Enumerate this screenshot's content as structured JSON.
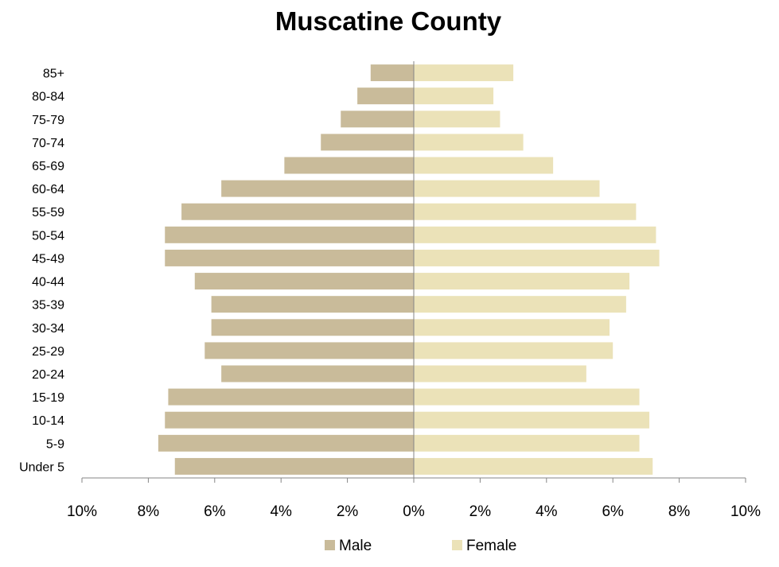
{
  "chart_data": {
    "type": "bar",
    "orientation": "horizontal",
    "title": "Muscatine County",
    "xlabel": "",
    "ylabel": "",
    "categories": [
      "Under 5",
      "5-9",
      "10-14",
      "15-19",
      "20-24",
      "25-29",
      "30-34",
      "35-39",
      "40-44",
      "45-49",
      "50-54",
      "55-59",
      "60-64",
      "65-69",
      "70-74",
      "75-79",
      "80-84",
      "85+"
    ],
    "series": [
      {
        "name": "Male",
        "color": "#c9bb9a",
        "values": [
          -7.2,
          -7.7,
          -7.5,
          -7.4,
          -5.8,
          -6.3,
          -6.1,
          -6.1,
          -6.6,
          -7.5,
          -7.5,
          -7.0,
          -5.8,
          -3.9,
          -2.8,
          -2.2,
          -1.7,
          -1.3
        ]
      },
      {
        "name": "Female",
        "color": "#ebe2b8",
        "values": [
          7.2,
          6.8,
          7.1,
          6.8,
          5.2,
          6.0,
          5.9,
          6.4,
          6.5,
          7.4,
          7.3,
          6.7,
          5.6,
          4.2,
          3.3,
          2.6,
          2.4,
          3.0
        ]
      }
    ],
    "xlim": [
      -10,
      10
    ],
    "xticks": [
      -10,
      -8,
      -6,
      -4,
      -2,
      0,
      2,
      4,
      6,
      8,
      10
    ],
    "xtick_labels": [
      "10%",
      "8%",
      "6%",
      "4%",
      "2%",
      "0%",
      "2%",
      "4%",
      "6%",
      "8%",
      "10%"
    ],
    "grid": false,
    "legend_position": "bottom"
  }
}
